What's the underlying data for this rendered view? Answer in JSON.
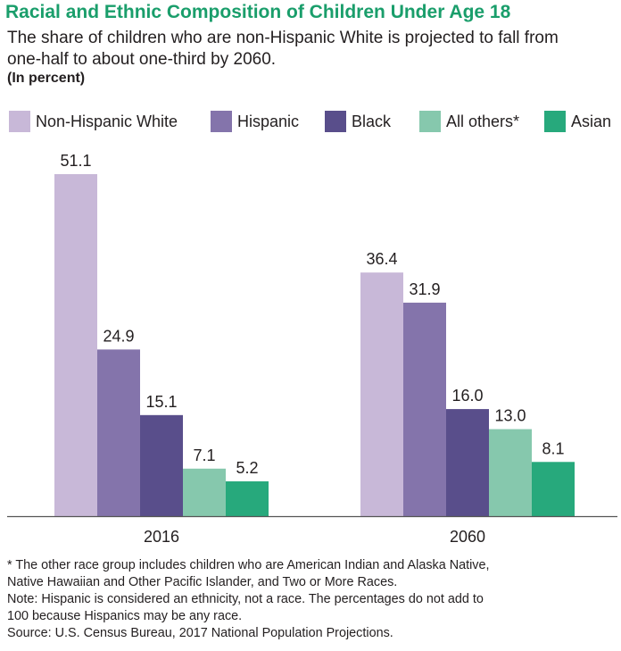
{
  "chart_data": {
    "type": "bar",
    "title": "Racial and Ethnic Composition of Children Under Age 18",
    "subtitle": "The share of children who are non-Hispanic White is projected to fall from one-half to about one-third by 2060.",
    "unit_label": "(In percent)",
    "categories": [
      "2016",
      "2060"
    ],
    "series": [
      {
        "name": "Non-Hispanic White",
        "color": "#c8b8d8",
        "values": [
          51.1,
          36.4
        ]
      },
      {
        "name": "Hispanic",
        "color": "#8474ab",
        "values": [
          24.9,
          31.9
        ]
      },
      {
        "name": "Black",
        "color": "#594e8b",
        "values": [
          15.1,
          16.0
        ]
      },
      {
        "name": "All others*",
        "color": "#86c8ad",
        "values": [
          7.1,
          13.0
        ]
      },
      {
        "name": "Asian",
        "color": "#27a97c",
        "values": [
          5.2,
          8.1
        ]
      }
    ],
    "value_labels": [
      [
        "51.1",
        "24.9",
        "15.1",
        "7.1",
        "5.2"
      ],
      [
        "36.4",
        "31.9",
        "16.0",
        "13.0",
        "8.1"
      ]
    ],
    "ylim": [
      0,
      51.1
    ],
    "xlabel": "",
    "ylabel": "",
    "grid": false,
    "legend": "top"
  },
  "notes": {
    "footnote_line1": "* The other race group includes children who are American Indian and Alaska Native,",
    "footnote_line2": "Native Hawaiian and Other Pacific Islander, and Two or More Races.",
    "note_line1": "Note: Hispanic is considered an ethnicity, not a race. The percentages do not add to",
    "note_line2": "100 because Hispanics may be any race.",
    "source": "Source: U.S. Census Bureau, 2017 National Population Projections."
  }
}
